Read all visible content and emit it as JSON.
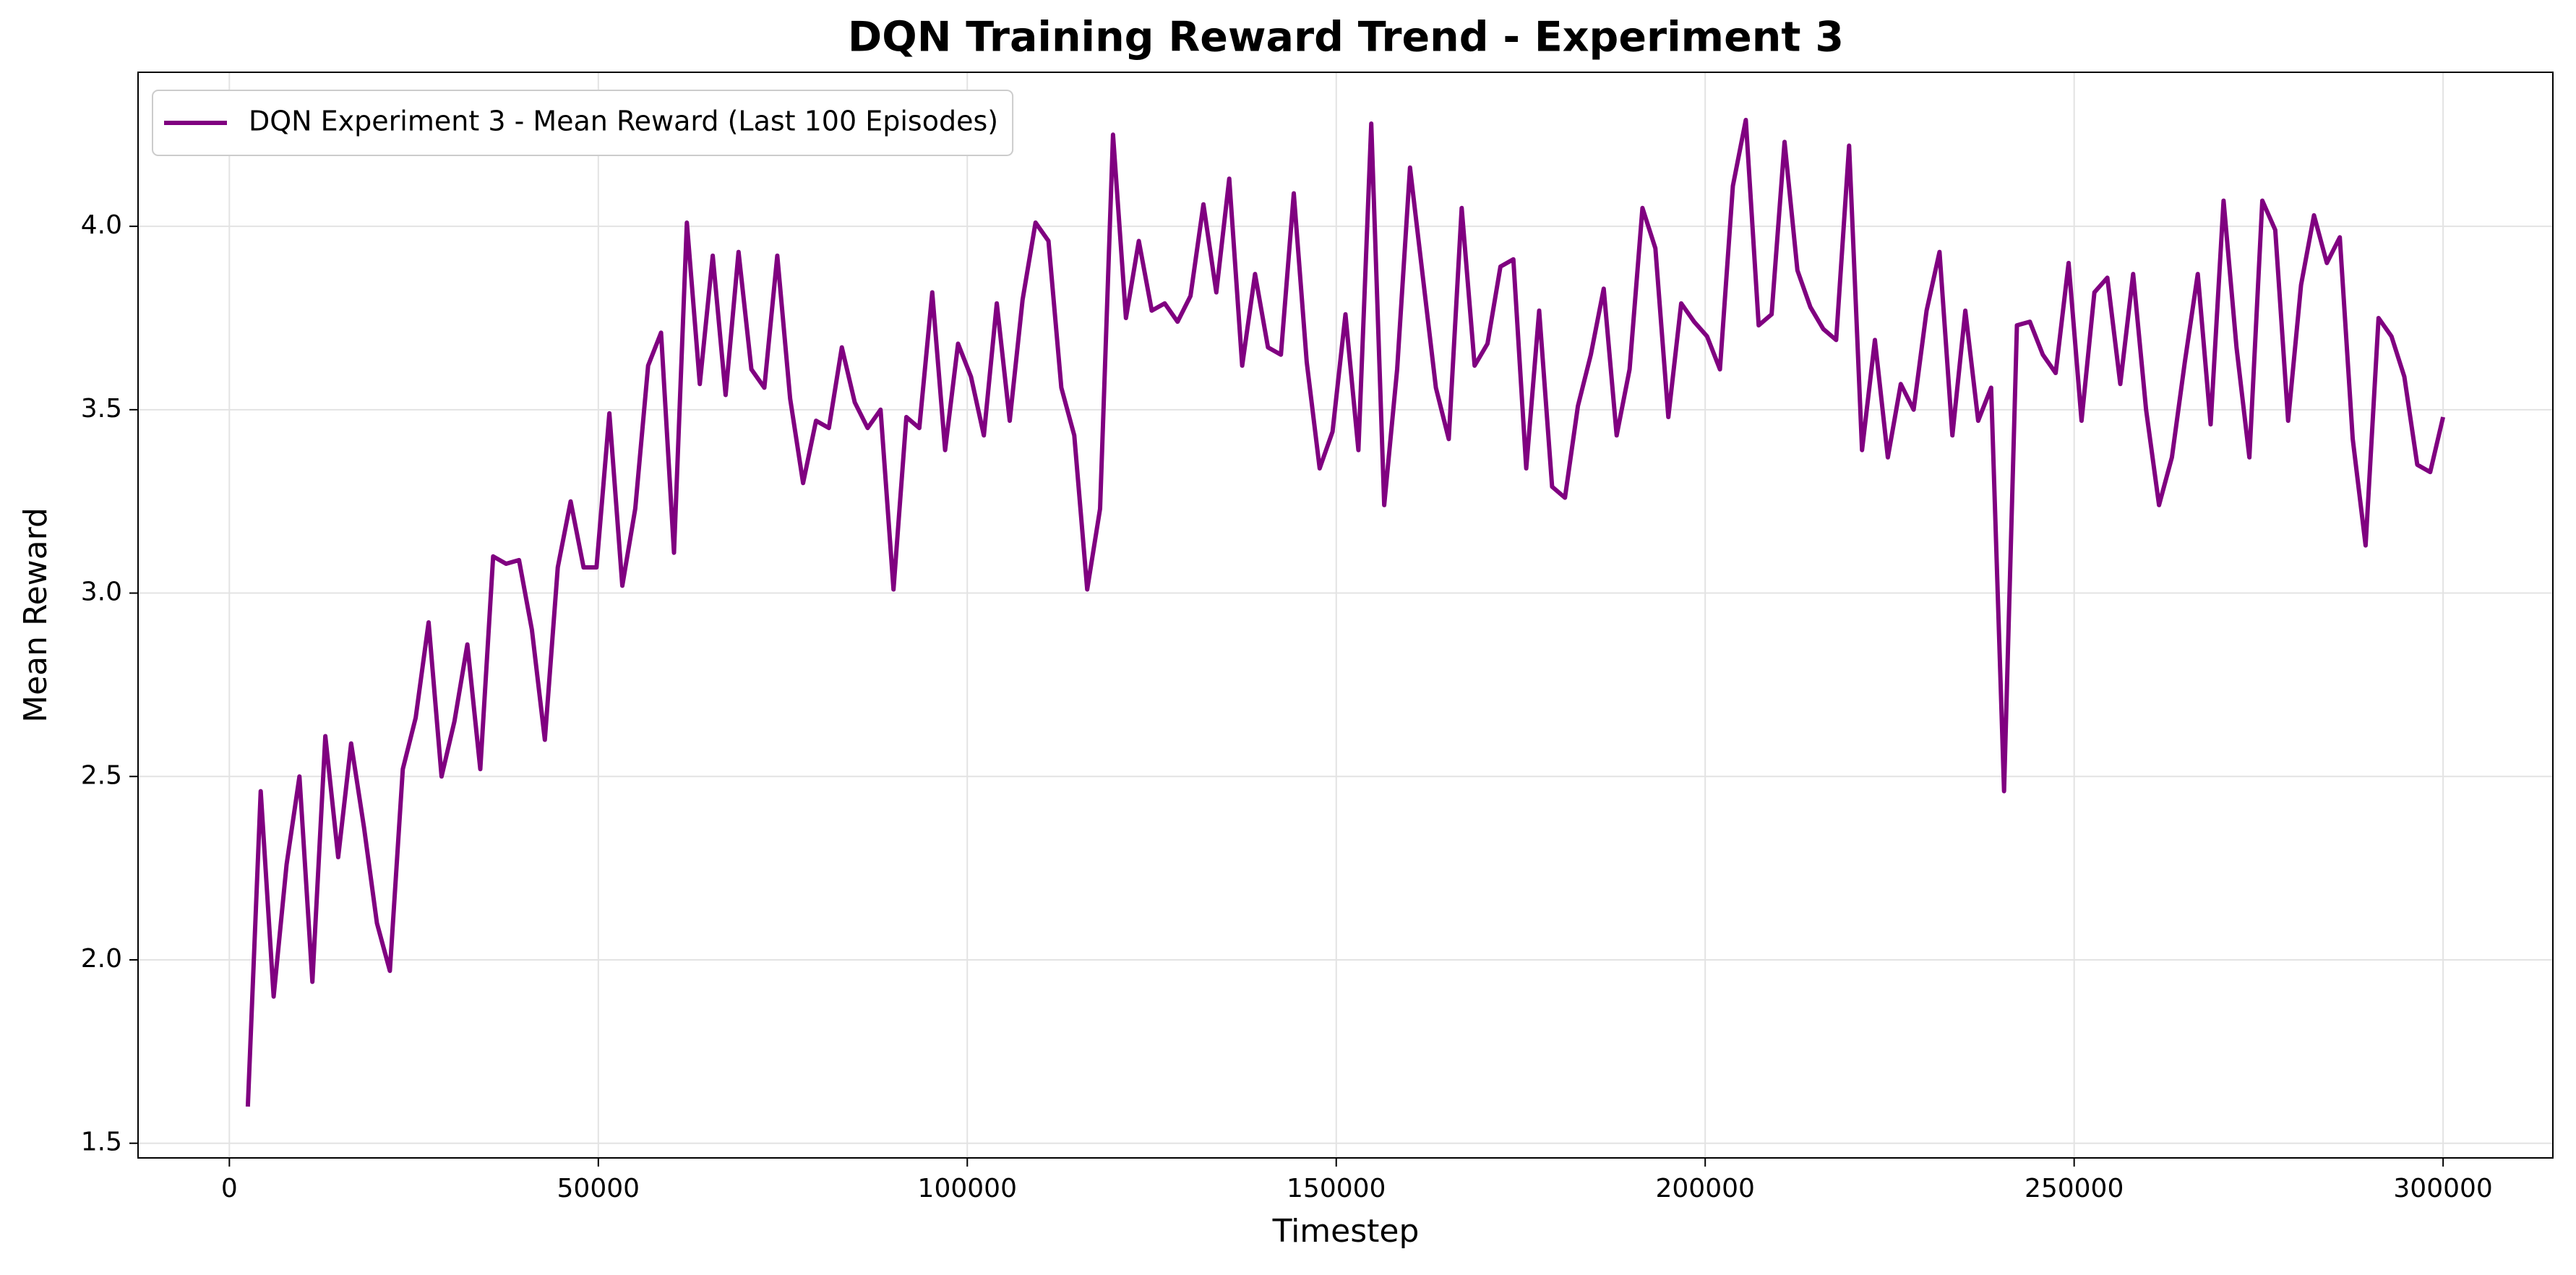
{
  "chart_data": {
    "type": "line",
    "title": "DQN Training Reward Trend - Experiment 3",
    "x_label": "Timestep",
    "y_label": "Mean Reward",
    "x": [
      2500,
      4250,
      6000,
      7750,
      9500,
      11250,
      13000,
      14750,
      16500,
      18250,
      20000,
      21750,
      23500,
      25250,
      27000,
      28750,
      30500,
      32250,
      34000,
      35750,
      37500,
      39250,
      41000,
      42750,
      44500,
      46250,
      48000,
      49750,
      51500,
      53250,
      55000,
      56750,
      58500,
      60250,
      62000,
      63750,
      65500,
      67250,
      69000,
      70750,
      72500,
      74250,
      76000,
      77750,
      79500,
      81250,
      83000,
      84750,
      86500,
      88250,
      90000,
      91750,
      93500,
      95250,
      97000,
      98750,
      100500,
      102250,
      104000,
      105750,
      107500,
      109250,
      111000,
      112750,
      114500,
      116250,
      118000,
      119750,
      121500,
      123250,
      125000,
      126750,
      128500,
      130250,
      132000,
      133750,
      135500,
      137250,
      139000,
      140750,
      142500,
      144250,
      146000,
      147750,
      149500,
      151250,
      153000,
      154750,
      156500,
      158250,
      160000,
      161750,
      163500,
      165250,
      167000,
      168750,
      170500,
      172250,
      174000,
      175750,
      177500,
      179250,
      181000,
      182750,
      184500,
      186250,
      188000,
      189750,
      191500,
      193250,
      195000,
      196750,
      198500,
      200250,
      202000,
      203750,
      205500,
      207250,
      209000,
      210750,
      212500,
      214250,
      216000,
      217750,
      219500,
      221250,
      223000,
      224750,
      226500,
      228250,
      230000,
      231750,
      233500,
      235250,
      237000,
      238750,
      240500,
      242250,
      244000,
      245750,
      247500,
      249250,
      251000,
      252750,
      254500,
      256250,
      258000,
      259750,
      261500,
      263250,
      265000,
      266750,
      268500,
      270250,
      272000,
      273750,
      275500,
      277250,
      279000,
      280750,
      282500,
      284250,
      286000,
      287750,
      289500,
      291250,
      293000,
      294750,
      296500,
      298250,
      300000
    ],
    "series": [
      {
        "name": "DQN Experiment 3 - Mean Reward (Last 100 Episodes)",
        "color": "#800080",
        "values": [
          1.6,
          2.46,
          1.9,
          2.26,
          2.5,
          1.94,
          2.61,
          2.28,
          2.59,
          2.36,
          2.1,
          1.97,
          2.52,
          2.66,
          2.92,
          2.5,
          2.65,
          2.86,
          2.52,
          3.1,
          3.08,
          3.09,
          2.9,
          2.6,
          3.07,
          3.25,
          3.07,
          3.07,
          3.49,
          3.02,
          3.23,
          3.62,
          3.71,
          3.11,
          4.01,
          3.57,
          3.92,
          3.54,
          3.93,
          3.61,
          3.56,
          3.92,
          3.53,
          3.3,
          3.47,
          3.45,
          3.67,
          3.52,
          3.45,
          3.5,
          3.01,
          3.48,
          3.45,
          3.82,
          3.39,
          3.68,
          3.59,
          3.43,
          3.79,
          3.47,
          3.8,
          4.01,
          3.96,
          3.56,
          3.43,
          3.01,
          3.23,
          4.25,
          3.75,
          3.96,
          3.77,
          3.79,
          3.74,
          3.81,
          4.06,
          3.82,
          4.13,
          3.62,
          3.87,
          3.67,
          3.65,
          4.09,
          3.63,
          3.34,
          3.44,
          3.76,
          3.39,
          4.28,
          3.24,
          3.61,
          4.16,
          3.86,
          3.56,
          3.42,
          4.05,
          3.62,
          3.68,
          3.89,
          3.91,
          3.34,
          3.77,
          3.29,
          3.26,
          3.51,
          3.65,
          3.83,
          3.43,
          3.61,
          4.05,
          3.94,
          3.48,
          3.79,
          3.74,
          3.7,
          3.61,
          4.11,
          4.29,
          3.73,
          3.76,
          4.23,
          3.88,
          3.78,
          3.72,
          3.69,
          4.22,
          3.39,
          3.69,
          3.37,
          3.57,
          3.5,
          3.77,
          3.93,
          3.43,
          3.77,
          3.47,
          3.56,
          2.46,
          3.73,
          3.74,
          3.65,
          3.6,
          3.9,
          3.47,
          3.82,
          3.86,
          3.57,
          3.87,
          3.5,
          3.24,
          3.37,
          3.63,
          3.87,
          3.46,
          4.07,
          3.67,
          3.37,
          4.07,
          3.99,
          3.47,
          3.84,
          4.03,
          3.9,
          3.97,
          3.42,
          3.13,
          3.75,
          3.7,
          3.59,
          3.35,
          3.33,
          3.48
        ]
      }
    ],
    "xlim": [
      -12375,
      314875
    ],
    "ylim": [
      1.46,
      4.42
    ],
    "xticks": [
      0,
      50000,
      100000,
      150000,
      200000,
      250000,
      300000
    ],
    "yticks": [
      1.5,
      {
        "value": 2,
        "label": "2.0"
      },
      2.5,
      {
        "value": 3,
        "label": "3.0"
      },
      3.5,
      {
        "value": 4,
        "label": "4.0"
      }
    ],
    "grid": true,
    "legend": "upper left"
  }
}
